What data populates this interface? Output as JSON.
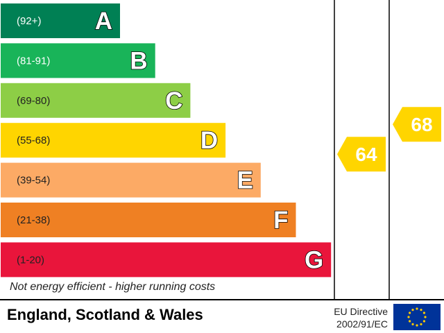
{
  "chart_data": {
    "type": "bar",
    "bands": [
      {
        "letter": "A",
        "range": "(92+)",
        "color": "#008054",
        "range_color": "#ffffff"
      },
      {
        "letter": "B",
        "range": "(81-91)",
        "color": "#19b459",
        "range_color": "#ffffff"
      },
      {
        "letter": "C",
        "range": "(69-80)",
        "color": "#8dce46",
        "range_color": "#222222"
      },
      {
        "letter": "D",
        "range": "(55-68)",
        "color": "#ffd500",
        "range_color": "#222222"
      },
      {
        "letter": "E",
        "range": "(39-54)",
        "color": "#fcaa65",
        "range_color": "#222222"
      },
      {
        "letter": "F",
        "range": "(21-38)",
        "color": "#ef8023",
        "range_color": "#222222"
      },
      {
        "letter": "G",
        "range": "(1-20)",
        "color": "#e9153b",
        "range_color": "#222222"
      }
    ],
    "ratings": [
      {
        "value": 64,
        "band": "D",
        "color": "#ffd500"
      },
      {
        "value": 68,
        "band": "D",
        "color": "#ffd500"
      }
    ]
  },
  "footnote": "Not energy efficient - higher running costs",
  "footer": {
    "region": "England, Scotland & Wales",
    "directive_line1": "EU Directive",
    "directive_line2": "2002/91/EC"
  },
  "colors": {
    "frame": "#000000",
    "eu_flag_blue": "#003399",
    "eu_flag_star": "#ffcc00"
  },
  "icons": [
    "eu-flag-icon"
  ]
}
